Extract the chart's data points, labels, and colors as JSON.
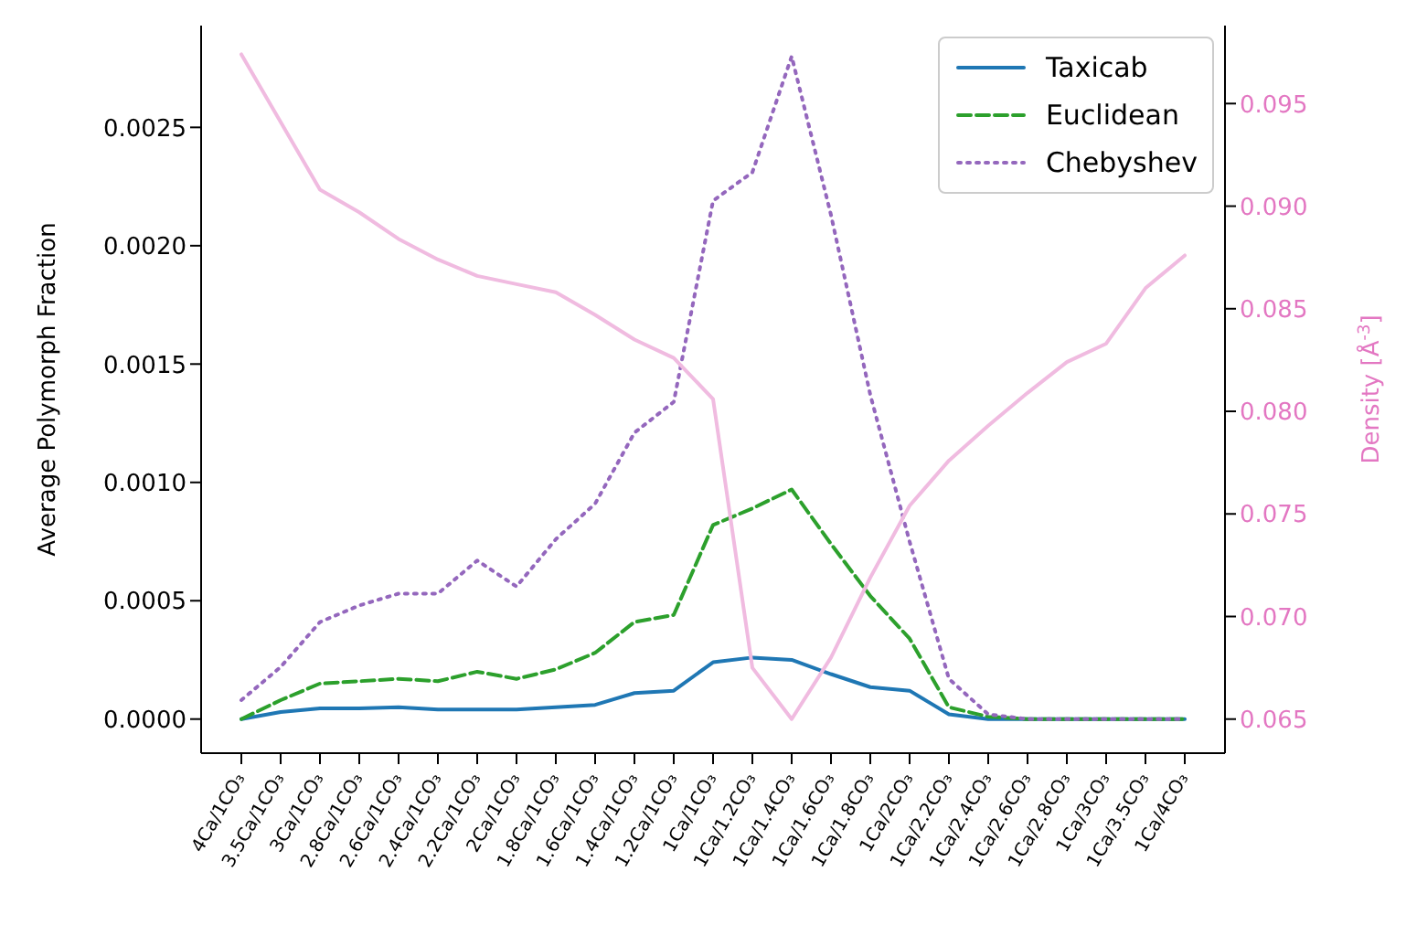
{
  "chart_data": {
    "type": "line",
    "ylabel": "Average Polymorph Fraction",
    "y2label": "Density [Å$^{-3}$]",
    "categories": [
      "4Ca/1CO₃",
      "3.5Ca/1CO₃",
      "3Ca/1CO₃",
      "2.8Ca/1CO₃",
      "2.6Ca/1CO₃",
      "2.4Ca/1CO₃",
      "2.2Ca/1CO₃",
      "2Ca/1CO₃",
      "1.8Ca/1CO₃",
      "1.6Ca/1CO₃",
      "1.4Ca/1CO₃",
      "1.2Ca/1CO₃",
      "1Ca/1CO₃",
      "1Ca/1.2CO₃",
      "1Ca/1.4CO₃",
      "1Ca/1.6CO₃",
      "1Ca/1.8CO₃",
      "1Ca/2CO₃",
      "1Ca/2.2CO₃",
      "1Ca/2.4CO₃",
      "1Ca/2.6CO₃",
      "1Ca/2.8CO₃",
      "1Ca/3CO₃",
      "1Ca/3.5CO₃",
      "1Ca/4CO₃"
    ],
    "series": [
      {
        "name": "Taxicab",
        "color": "#1f77b4",
        "line_style": "solid",
        "values": [
          0,
          3e-05,
          4.5e-05,
          4.5e-05,
          5e-05,
          4e-05,
          4e-05,
          4e-05,
          5e-05,
          6e-05,
          0.00011,
          0.00012,
          0.00024,
          0.00026,
          0.00025,
          0.00019,
          0.000135,
          0.00012,
          2e-05,
          0,
          0,
          0,
          0,
          0,
          0
        ]
      },
      {
        "name": "Euclidean",
        "color": "#2ca02c",
        "line_style": "dashed",
        "values": [
          0,
          8e-05,
          0.00015,
          0.00016,
          0.00017,
          0.00016,
          0.0002,
          0.00017,
          0.00021,
          0.00028,
          0.00041,
          0.00044,
          0.00082,
          0.00089,
          0.00097,
          0.00074,
          0.00052,
          0.00034,
          5e-05,
          1e-05,
          0,
          0,
          0,
          0,
          0
        ]
      },
      {
        "name": "Chebyshev",
        "color": "#9467bd",
        "line_style": "dotted",
        "values": [
          8e-05,
          0.00022,
          0.00041,
          0.00048,
          0.00053,
          0.00053,
          0.00067,
          0.00056,
          0.00076,
          0.00091,
          0.00121,
          0.00134,
          0.00219,
          0.00231,
          0.0028,
          0.00213,
          0.00137,
          0.00075,
          0.00017,
          2e-05,
          0,
          0,
          0,
          0,
          0
        ]
      },
      {
        "type": "line",
        "axis": "y2",
        "color": "#f0bbe0",
        "line_style": "solid",
        "values": [
          0.0974,
          0.0941,
          0.0908,
          0.0897,
          0.0884,
          0.0874,
          0.0866,
          0.0862,
          0.0858,
          0.0847,
          0.0835,
          0.0826,
          0.0806,
          0.0675,
          0.065,
          0.068,
          0.0719,
          0.0754,
          0.0776,
          0.0793,
          0.0809,
          0.0824,
          0.0833,
          0.086,
          0.0876
        ]
      }
    ],
    "ylim": [
      -0.000144,
      0.00293
    ],
    "yticks": [
      {
        "value": 0,
        "label": "0.0000"
      },
      {
        "value": 0.0005,
        "label": "0.0005"
      },
      {
        "value": 0.001,
        "label": "0.0010"
      },
      {
        "value": 0.0015,
        "label": "0.0015"
      },
      {
        "value": 0.002,
        "label": "0.0020"
      },
      {
        "value": 0.0025,
        "label": "0.0025"
      }
    ],
    "y2lim": [
      0.06334,
      0.0988
    ],
    "y2ticks": [
      {
        "value": 0.065,
        "label": "0.065"
      },
      {
        "value": 0.07,
        "label": "0.070"
      },
      {
        "value": 0.075,
        "label": "0.075"
      },
      {
        "value": 0.08,
        "label": "0.080"
      },
      {
        "value": 0.085,
        "label": "0.085"
      },
      {
        "value": 0.09,
        "label": "0.090"
      },
      {
        "value": 0.095,
        "label": "0.095"
      }
    ],
    "legend": "top right",
    "grid": false
  }
}
